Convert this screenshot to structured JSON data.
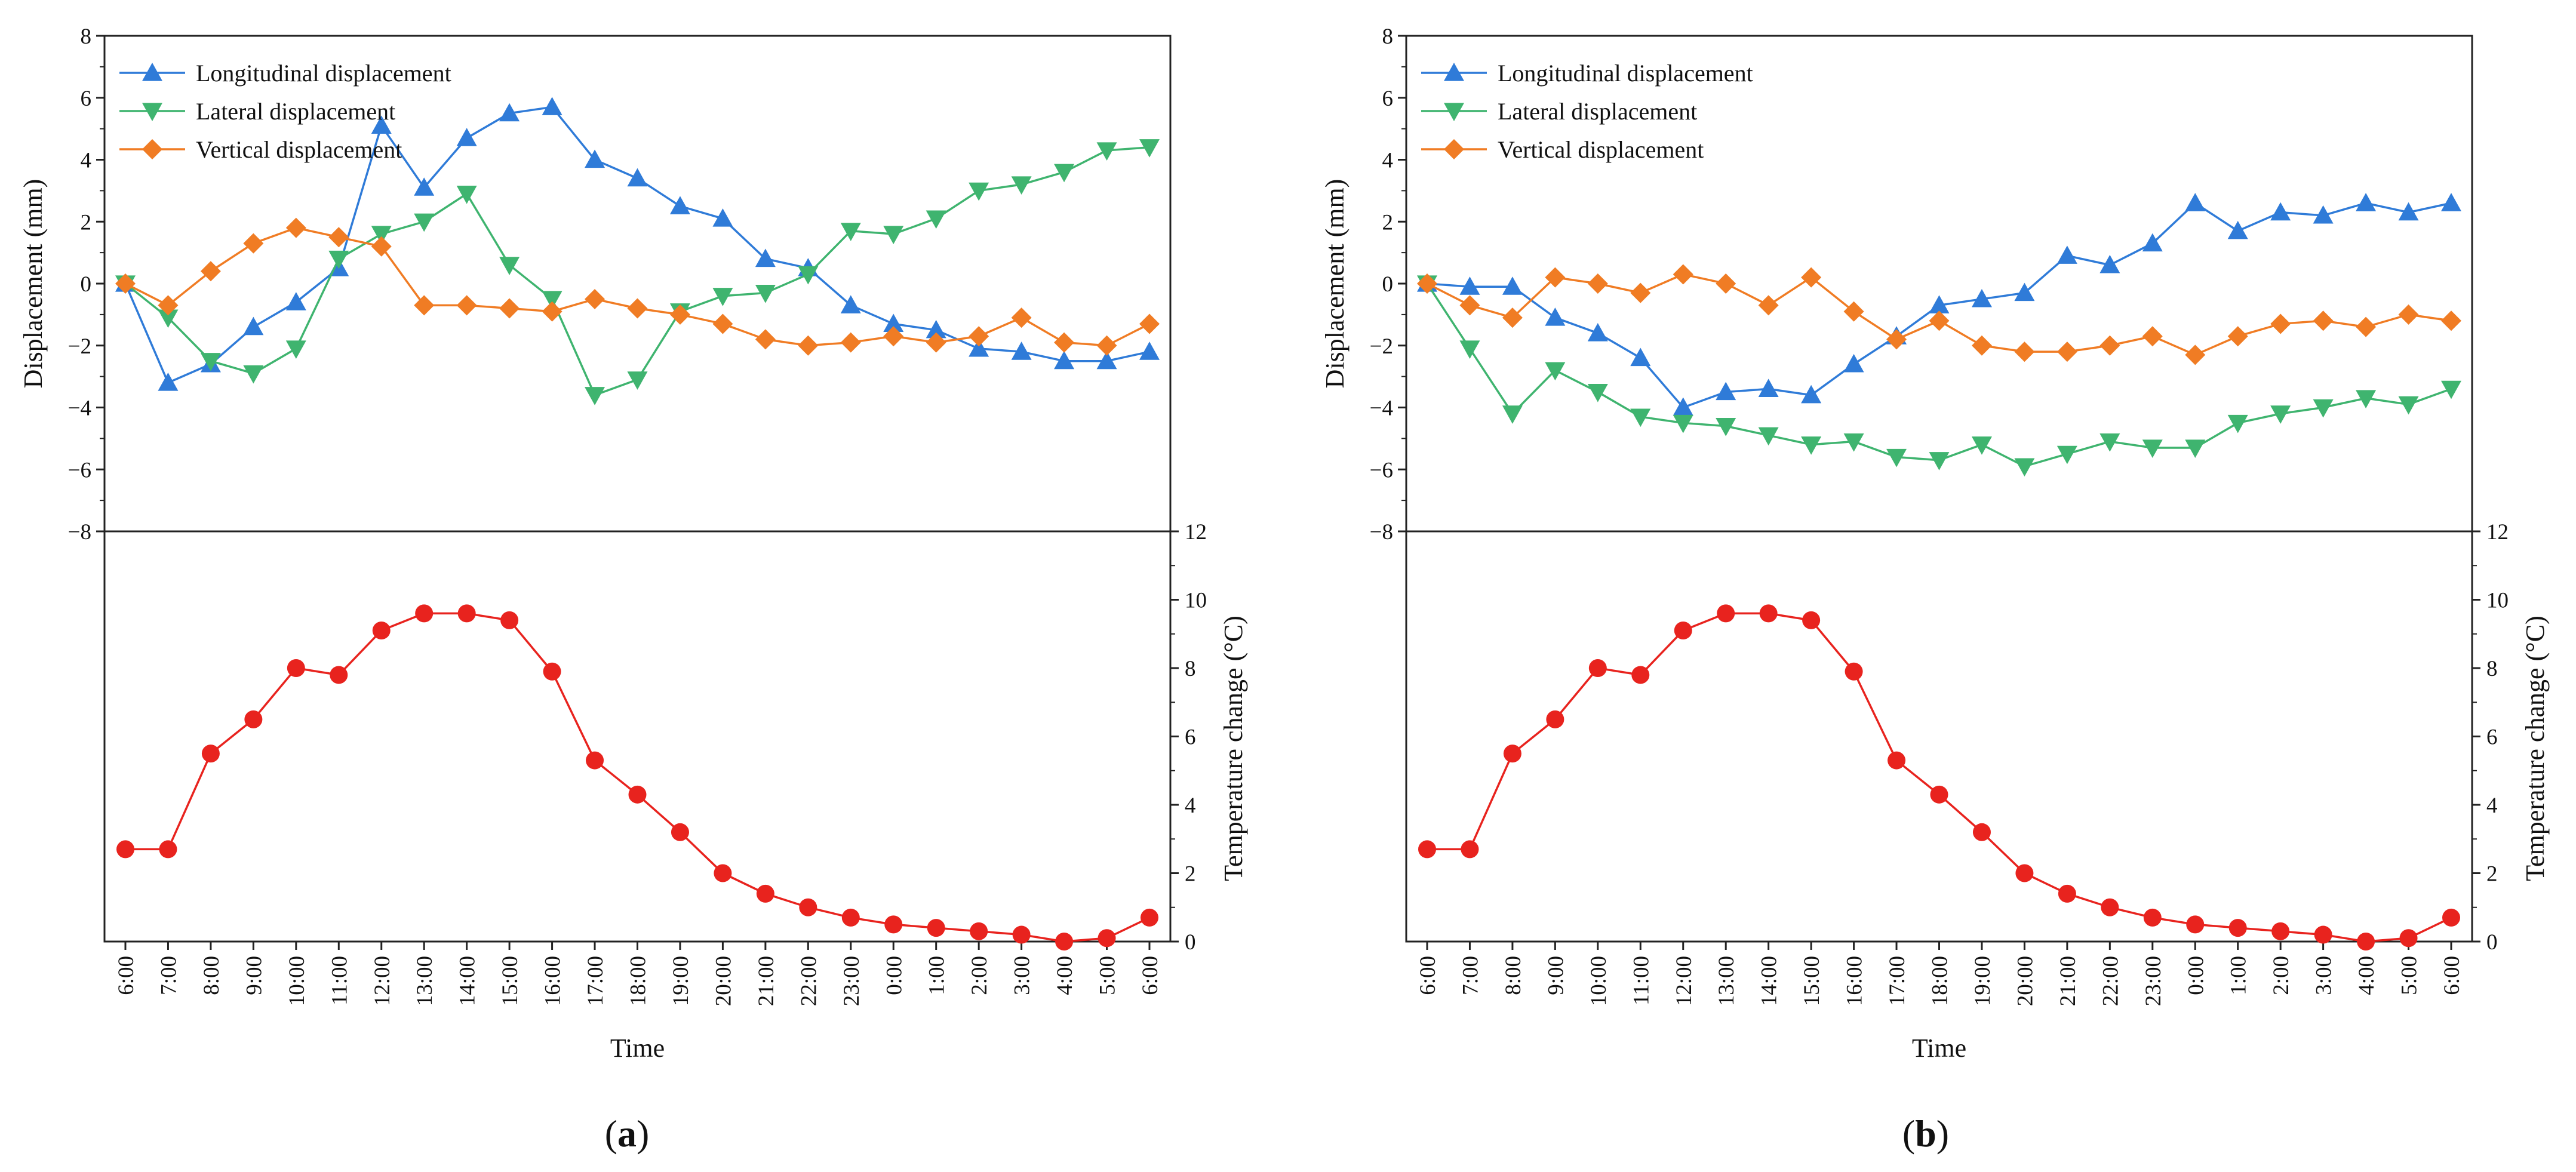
{
  "chart_data": [
    {
      "panel": "a",
      "panel_label": "(a)",
      "type": "line",
      "categories": [
        "6:00",
        "7:00",
        "8:00",
        "9:00",
        "10:00",
        "11:00",
        "12:00",
        "13:00",
        "14:00",
        "15:00",
        "16:00",
        "17:00",
        "18:00",
        "19:00",
        "20:00",
        "21:00",
        "22:00",
        "23:00",
        "0:00",
        "1:00",
        "2:00",
        "3:00",
        "4:00",
        "5:00",
        "6:00"
      ],
      "xlabel": "Time",
      "ylabel_top": "Displacement (mm)",
      "ylim_top": [
        -8,
        8
      ],
      "yticks_top": [
        -8,
        -6,
        -4,
        -2,
        0,
        2,
        4,
        6,
        8
      ],
      "ylabel_bottom": "Temperature change (°C)",
      "ylim_bottom": [
        0,
        12
      ],
      "yticks_bottom": [
        0,
        2,
        4,
        6,
        8,
        10,
        12
      ],
      "legend_position": "top-left",
      "series": [
        {
          "name": "Longitudinal displacement",
          "marker": "triangle-up",
          "color": "#2f7bd8",
          "values": [
            0,
            -3.2,
            -2.6,
            -1.4,
            -0.6,
            0.5,
            5.1,
            3.1,
            4.7,
            5.5,
            5.7,
            4.0,
            3.4,
            2.5,
            2.1,
            0.8,
            0.5,
            -0.7,
            -1.3,
            -1.5,
            -2.1,
            -2.2,
            -2.5,
            -2.5,
            -2.2
          ]
        },
        {
          "name": "Lateral displacement",
          "marker": "triangle-down",
          "color": "#3fb46f",
          "values": [
            0,
            -1.1,
            -2.5,
            -2.9,
            -2.1,
            0.8,
            1.6,
            2.0,
            2.9,
            0.6,
            -0.5,
            -3.6,
            -3.1,
            -0.9,
            -0.4,
            -0.3,
            0.3,
            1.7,
            1.6,
            2.1,
            3.0,
            3.2,
            3.6,
            4.3,
            4.4
          ]
        },
        {
          "name": "Vertical displacement",
          "marker": "diamond",
          "color": "#f07c24",
          "values": [
            0,
            -0.7,
            0.4,
            1.3,
            1.8,
            1.5,
            1.2,
            -0.7,
            -0.7,
            -0.8,
            -0.9,
            -0.5,
            -0.8,
            -1.0,
            -1.3,
            -1.8,
            -2.0,
            -1.9,
            -1.7,
            -1.9,
            -1.7,
            -1.1,
            -1.9,
            -2.0,
            -1.3
          ]
        },
        {
          "name": "Temperature change",
          "marker": "circle",
          "color": "#e8231e",
          "axis": "bottom",
          "values": [
            2.7,
            2.7,
            5.5,
            6.5,
            8.0,
            7.8,
            9.1,
            9.6,
            9.6,
            9.4,
            7.9,
            5.3,
            4.3,
            3.2,
            2.0,
            1.4,
            1.0,
            0.7,
            0.5,
            0.4,
            0.3,
            0.2,
            0.0,
            0.1,
            0.7
          ]
        }
      ]
    },
    {
      "panel": "b",
      "panel_label": "(b)",
      "type": "line",
      "categories": [
        "6:00",
        "7:00",
        "8:00",
        "9:00",
        "10:00",
        "11:00",
        "12:00",
        "13:00",
        "14:00",
        "15:00",
        "16:00",
        "17:00",
        "18:00",
        "19:00",
        "20:00",
        "21:00",
        "22:00",
        "23:00",
        "0:00",
        "1:00",
        "2:00",
        "3:00",
        "4:00",
        "5:00",
        "6:00"
      ],
      "xlabel": "Time",
      "ylabel_top": "Displacement (mm)",
      "ylim_top": [
        -8,
        8
      ],
      "yticks_top": [
        -8,
        -6,
        -4,
        -2,
        0,
        2,
        4,
        6,
        8
      ],
      "ylabel_bottom": "Temperature change (°C)",
      "ylim_bottom": [
        0,
        12
      ],
      "yticks_bottom": [
        0,
        2,
        4,
        6,
        8,
        10,
        12
      ],
      "legend_position": "top-left",
      "series": [
        {
          "name": "Longitudinal displacement",
          "marker": "triangle-up",
          "color": "#2f7bd8",
          "values": [
            0,
            -0.1,
            -0.1,
            -1.1,
            -1.6,
            -2.4,
            -4.0,
            -3.5,
            -3.4,
            -3.6,
            -2.6,
            -1.7,
            -0.7,
            -0.5,
            -0.3,
            0.9,
            0.6,
            1.3,
            2.6,
            1.7,
            2.3,
            2.2,
            2.6,
            2.3,
            2.6
          ]
        },
        {
          "name": "Lateral displacement",
          "marker": "triangle-down",
          "color": "#3fb46f",
          "values": [
            0,
            -2.1,
            -4.2,
            -2.8,
            -3.5,
            -4.3,
            -4.5,
            -4.6,
            -4.9,
            -5.2,
            -5.1,
            -5.6,
            -5.7,
            -5.2,
            -5.9,
            -5.5,
            -5.1,
            -5.3,
            -5.3,
            -4.5,
            -4.2,
            -4.0,
            -3.7,
            -3.9,
            -3.4
          ]
        },
        {
          "name": "Vertical displacement",
          "marker": "diamond",
          "color": "#f07c24",
          "values": [
            0,
            -0.7,
            -1.1,
            0.2,
            0.0,
            -0.3,
            0.3,
            0.0,
            -0.7,
            0.2,
            -0.9,
            -1.8,
            -1.2,
            -2.0,
            -2.2,
            -2.2,
            -2.0,
            -1.7,
            -2.3,
            -1.7,
            -1.3,
            -1.2,
            -1.4,
            -1.0,
            -1.2
          ]
        },
        {
          "name": "Temperature change",
          "marker": "circle",
          "color": "#e8231e",
          "axis": "bottom",
          "values": [
            2.7,
            2.7,
            5.5,
            6.5,
            8.0,
            7.8,
            9.1,
            9.6,
            9.6,
            9.4,
            7.9,
            5.3,
            4.3,
            3.2,
            2.0,
            1.4,
            1.0,
            0.7,
            0.5,
            0.4,
            0.3,
            0.2,
            0.0,
            0.1,
            0.7
          ]
        }
      ]
    }
  ]
}
